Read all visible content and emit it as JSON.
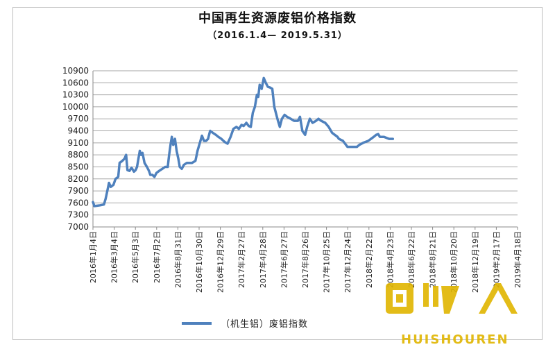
{
  "chart_data": {
    "type": "line",
    "title": "中国再生资源废铝价格指数",
    "subtitle": "（2016.1.4— 2019.5.31）",
    "ylim": [
      7000,
      10900
    ],
    "yticks": [
      7000,
      7300,
      7600,
      7900,
      8200,
      8500,
      8800,
      9100,
      9400,
      9700,
      10000,
      10300,
      10600,
      10900
    ],
    "xlim": [
      "2016-01-04",
      "2019-05-31"
    ],
    "xticks": [
      "2016年1月4日",
      "2016年3月4日",
      "2016年5月3日",
      "2016年7月2日",
      "2016年8月31日",
      "2016年10月30日",
      "2016年12月29日",
      "2017年2月27日",
      "2017年4月28日",
      "2017年6月27日",
      "2017年8月26日",
      "2017年10月25日",
      "2017年12月24日",
      "2018年2月22日",
      "2018年4月23日",
      "2018年6月22日",
      "2018年8月21日",
      "2018年10月20日",
      "2018年12月19日",
      "2019年2月17日",
      "2019年4月18日"
    ],
    "grid": "horizontal",
    "legend_position": "bottom",
    "series": [
      {
        "name": "（机生铝）废铝指数",
        "color": "#4f81bd",
        "points": [
          [
            "2016-01-04",
            7620
          ],
          [
            "2016-01-08",
            7520
          ],
          [
            "2016-01-25",
            7540
          ],
          [
            "2016-02-05",
            7560
          ],
          [
            "2016-02-10",
            7700
          ],
          [
            "2016-02-15",
            7900
          ],
          [
            "2016-02-20",
            8100
          ],
          [
            "2016-02-25",
            8000
          ],
          [
            "2016-03-04",
            8050
          ],
          [
            "2016-03-10",
            8200
          ],
          [
            "2016-03-18",
            8250
          ],
          [
            "2016-03-22",
            8600
          ],
          [
            "2016-03-30",
            8650
          ],
          [
            "2016-04-05",
            8700
          ],
          [
            "2016-04-10",
            8800
          ],
          [
            "2016-04-14",
            8420
          ],
          [
            "2016-04-20",
            8400
          ],
          [
            "2016-04-26",
            8480
          ],
          [
            "2016-05-03",
            8380
          ],
          [
            "2016-05-08",
            8420
          ],
          [
            "2016-05-12",
            8500
          ],
          [
            "2016-05-16",
            8700
          ],
          [
            "2016-05-20",
            8900
          ],
          [
            "2016-05-24",
            8800
          ],
          [
            "2016-05-28",
            8850
          ],
          [
            "2016-06-03",
            8600
          ],
          [
            "2016-06-10",
            8500
          ],
          [
            "2016-06-16",
            8400
          ],
          [
            "2016-06-20",
            8300
          ],
          [
            "2016-06-26",
            8300
          ],
          [
            "2016-07-02",
            8250
          ],
          [
            "2016-07-08",
            8350
          ],
          [
            "2016-07-16",
            8400
          ],
          [
            "2016-07-25",
            8450
          ],
          [
            "2016-08-02",
            8500
          ],
          [
            "2016-08-10",
            8500
          ],
          [
            "2016-08-14",
            8800
          ],
          [
            "2016-08-18",
            9050
          ],
          [
            "2016-08-22",
            9250
          ],
          [
            "2016-08-26",
            9050
          ],
          [
            "2016-08-31",
            9200
          ],
          [
            "2016-09-05",
            8900
          ],
          [
            "2016-09-10",
            8700
          ],
          [
            "2016-09-14",
            8500
          ],
          [
            "2016-09-20",
            8450
          ],
          [
            "2016-09-26",
            8550
          ],
          [
            "2016-10-05",
            8600
          ],
          [
            "2016-10-20",
            8600
          ],
          [
            "2016-10-30",
            8650
          ],
          [
            "2016-11-05",
            8900
          ],
          [
            "2016-11-12",
            9100
          ],
          [
            "2016-11-18",
            9280
          ],
          [
            "2016-11-24",
            9150
          ],
          [
            "2016-11-30",
            9150
          ],
          [
            "2016-12-06",
            9200
          ],
          [
            "2016-12-12",
            9400
          ],
          [
            "2016-12-20",
            9350
          ],
          [
            "2016-12-29",
            9300
          ],
          [
            "2017-01-05",
            9250
          ],
          [
            "2017-01-14",
            9200
          ],
          [
            "2017-01-24",
            9120
          ],
          [
            "2017-02-01",
            9080
          ],
          [
            "2017-02-10",
            9250
          ],
          [
            "2017-02-18",
            9450
          ],
          [
            "2017-02-27",
            9500
          ],
          [
            "2017-03-06",
            9450
          ],
          [
            "2017-03-14",
            9550
          ],
          [
            "2017-03-20",
            9520
          ],
          [
            "2017-03-28",
            9600
          ],
          [
            "2017-04-04",
            9520
          ],
          [
            "2017-04-10",
            9500
          ],
          [
            "2017-04-16",
            9850
          ],
          [
            "2017-04-22",
            10000
          ],
          [
            "2017-04-28",
            10300
          ],
          [
            "2017-05-02",
            10250
          ],
          [
            "2017-05-06",
            10550
          ],
          [
            "2017-05-12",
            10450
          ],
          [
            "2017-05-18",
            10720
          ],
          [
            "2017-05-24",
            10600
          ],
          [
            "2017-05-30",
            10500
          ],
          [
            "2017-06-06",
            10480
          ],
          [
            "2017-06-12",
            10450
          ],
          [
            "2017-06-18",
            10000
          ],
          [
            "2017-06-24",
            9800
          ],
          [
            "2017-06-27",
            9700
          ],
          [
            "2017-07-04",
            9500
          ],
          [
            "2017-07-10",
            9700
          ],
          [
            "2017-07-18",
            9800
          ],
          [
            "2017-07-25",
            9750
          ],
          [
            "2017-08-05",
            9700
          ],
          [
            "2017-08-15",
            9650
          ],
          [
            "2017-08-26",
            9650
          ],
          [
            "2017-09-01",
            9750
          ],
          [
            "2017-09-08",
            9400
          ],
          [
            "2017-09-16",
            9300
          ],
          [
            "2017-09-22",
            9500
          ],
          [
            "2017-09-30",
            9700
          ],
          [
            "2017-10-08",
            9600
          ],
          [
            "2017-10-18",
            9650
          ],
          [
            "2017-10-25",
            9700
          ],
          [
            "2017-11-02",
            9650
          ],
          [
            "2017-11-14",
            9600
          ],
          [
            "2017-11-24",
            9500
          ],
          [
            "2017-12-04",
            9350
          ],
          [
            "2017-12-12",
            9300
          ],
          [
            "2017-12-20",
            9250
          ],
          [
            "2017-12-24",
            9200
          ],
          [
            "2018-01-05",
            9150
          ],
          [
            "2018-01-18",
            9000
          ],
          [
            "2018-02-01",
            9000
          ],
          [
            "2018-02-15",
            9000
          ],
          [
            "2018-02-22",
            9050
          ],
          [
            "2018-03-05",
            9100
          ],
          [
            "2018-03-20",
            9150
          ],
          [
            "2018-04-05",
            9250
          ],
          [
            "2018-04-12",
            9300
          ],
          [
            "2018-04-18",
            9320
          ],
          [
            "2018-04-23",
            9250
          ],
          [
            "2018-05-05",
            9250
          ],
          [
            "2018-05-20",
            9200
          ],
          [
            "2018-05-31",
            9200
          ]
        ]
      }
    ]
  },
  "watermark": {
    "icon": "recycle-logo-icon",
    "text": "HUISHOUREN",
    "color": "#e0b500"
  }
}
